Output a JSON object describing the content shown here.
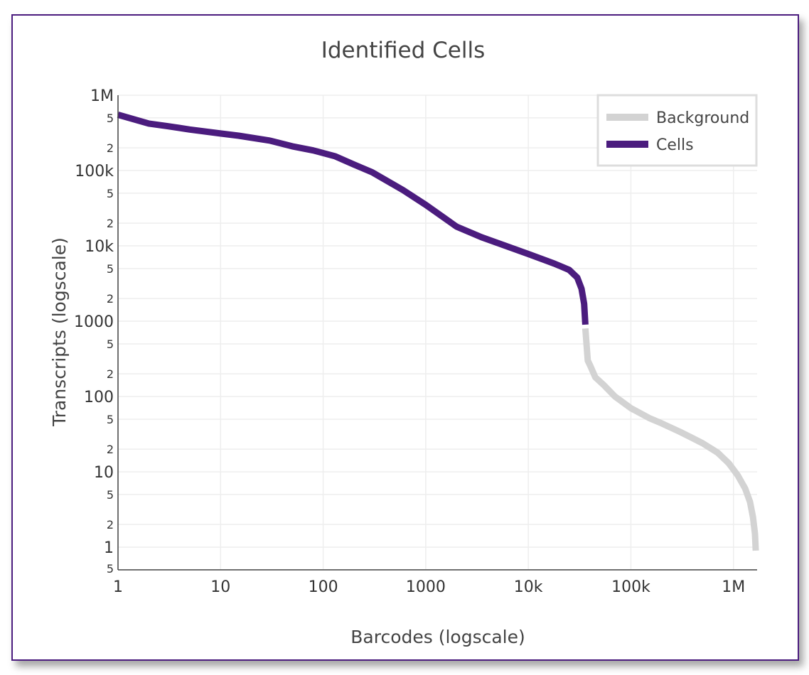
{
  "chart_data": {
    "type": "line",
    "title": "Identified Cells",
    "xlabel": "Barcodes (logscale)",
    "ylabel": "Transcripts (logscale)",
    "x_scale": "log",
    "y_scale": "log",
    "xlim": [
      1,
      1700000
    ],
    "ylim": [
      0.5,
      1000000
    ],
    "grid": true,
    "legend_position": "top-right",
    "x_ticks": [
      "1",
      "10",
      "100",
      "1000",
      "10k",
      "100k",
      "1M"
    ],
    "y_major_ticks": [
      "1",
      "10",
      "100",
      "1000",
      "10k",
      "100k",
      "1M"
    ],
    "y_minor_tick_labels": [
      "2",
      "5"
    ],
    "y_bottom_tick_label": "5",
    "series": [
      {
        "name": "Background",
        "color": "#d3d3d3",
        "points": [
          [
            36000,
            800
          ],
          [
            38000,
            300
          ],
          [
            40000,
            260
          ],
          [
            45000,
            180
          ],
          [
            55000,
            140
          ],
          [
            70000,
            100
          ],
          [
            100000,
            70
          ],
          [
            150000,
            52
          ],
          [
            200000,
            44
          ],
          [
            300000,
            34
          ],
          [
            400000,
            28
          ],
          [
            500000,
            24
          ],
          [
            700000,
            18
          ],
          [
            900000,
            13
          ],
          [
            1100000,
            9
          ],
          [
            1300000,
            6
          ],
          [
            1450000,
            4
          ],
          [
            1550000,
            2.5
          ],
          [
            1620000,
            1.5
          ],
          [
            1650000,
            0.9
          ]
        ]
      },
      {
        "name": "Cells",
        "color": "#4b1c7e",
        "points": [
          [
            1,
            550000
          ],
          [
            2,
            420000
          ],
          [
            3,
            390000
          ],
          [
            5,
            350000
          ],
          [
            10,
            310000
          ],
          [
            15,
            290000
          ],
          [
            30,
            250000
          ],
          [
            50,
            210000
          ],
          [
            80,
            185000
          ],
          [
            130,
            155000
          ],
          [
            200,
            120000
          ],
          [
            300,
            95000
          ],
          [
            600,
            55000
          ],
          [
            1000,
            35000
          ],
          [
            2000,
            18000
          ],
          [
            3500,
            13000
          ],
          [
            6000,
            10000
          ],
          [
            10000,
            7800
          ],
          [
            18000,
            5800
          ],
          [
            25000,
            4800
          ],
          [
            30000,
            3800
          ],
          [
            33000,
            2700
          ],
          [
            35000,
            1700
          ],
          [
            36000,
            900
          ]
        ]
      }
    ]
  }
}
